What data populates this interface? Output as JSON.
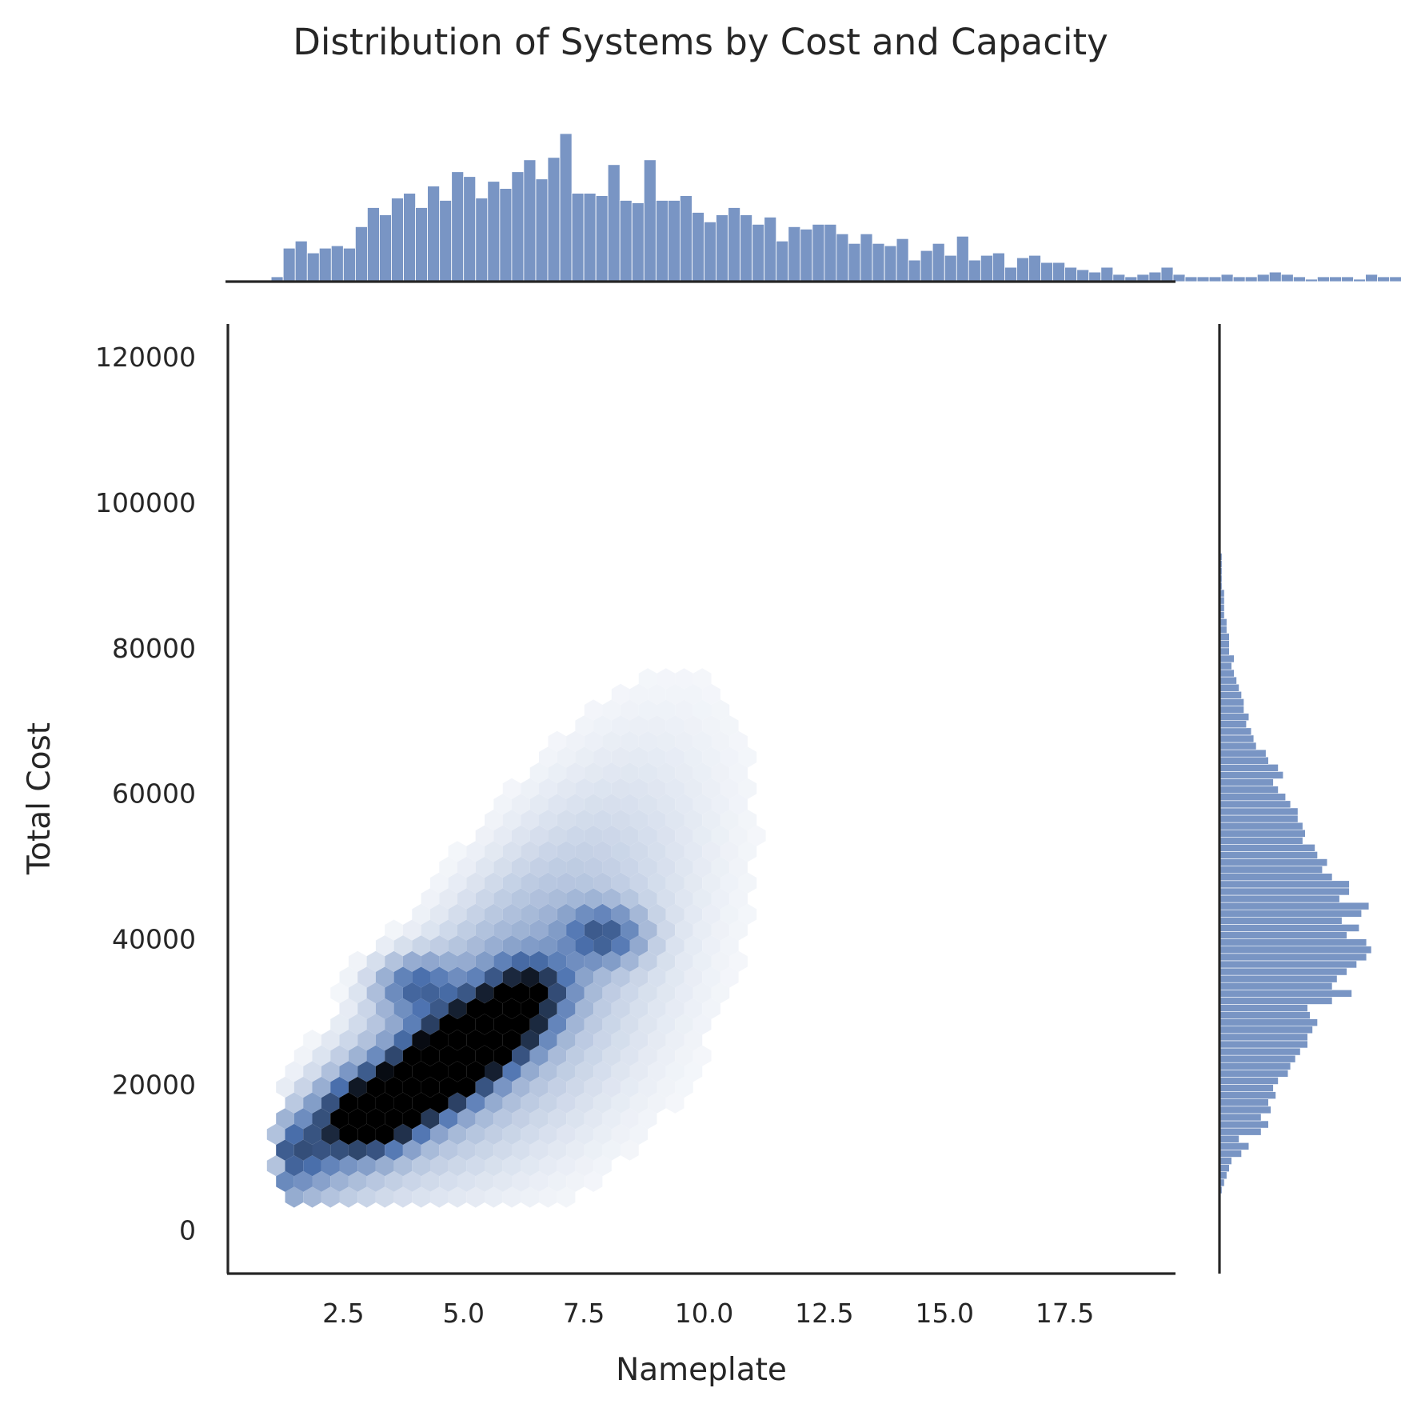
{
  "chart_data": {
    "type": "hexbin",
    "title": "Distribution of Systems by Cost and Capacity",
    "xlabel": "Nameplate",
    "ylabel": "Total Cost",
    "xlim": [
      0.1,
      19.8
    ],
    "ylim": [
      -6000,
      124500
    ],
    "x_ticks": [
      "2.5",
      "5.0",
      "7.5",
      "10.0",
      "12.5",
      "15.0",
      "17.5"
    ],
    "x_tick_values": [
      2.5,
      5.0,
      7.5,
      10.0,
      12.5,
      15.0,
      17.5
    ],
    "y_ticks": [
      "0",
      "20000",
      "40000",
      "60000",
      "80000",
      "100000",
      "120000"
    ],
    "y_tick_values": [
      0,
      20000,
      40000,
      60000,
      80000,
      100000,
      120000
    ],
    "grid": false,
    "colors": {
      "hex_max": "#000000",
      "hex_mid": "#4c72b0",
      "hex_min": "#ffffff",
      "marginal_bar": "#4c72b0"
    },
    "hexbin": {
      "gridsize_x": 48,
      "x_range": [
        1.1,
        19.2
      ],
      "y_range": [
        4500,
        116000
      ],
      "density_model": {
        "description": "approximate count density per hex: cost ≈ 4800·nameplate + 2000 with spread growing with nameplate",
        "slope": 4800,
        "intercept": 2000,
        "spread_base": 3500,
        "spread_per_unit": 1500
      },
      "hotspots": [
        {
          "x": 4.7,
          "y": 23500,
          "intensity": 1.0
        },
        {
          "x": 3.9,
          "y": 19000,
          "intensity": 0.95
        },
        {
          "x": 3.3,
          "y": 17000,
          "intensity": 0.9
        },
        {
          "x": 2.9,
          "y": 14500,
          "intensity": 0.85
        },
        {
          "x": 5.2,
          "y": 25500,
          "intensity": 0.85
        },
        {
          "x": 5.9,
          "y": 29500,
          "intensity": 0.85
        },
        {
          "x": 4.5,
          "y": 21500,
          "intensity": 0.8
        },
        {
          "x": 5.5,
          "y": 27500,
          "intensity": 0.75
        },
        {
          "x": 6.4,
          "y": 33500,
          "intensity": 0.6
        },
        {
          "x": 7.9,
          "y": 40500,
          "intensity": 0.45
        },
        {
          "x": 4.0,
          "y": 33500,
          "intensity": 0.4
        },
        {
          "x": 1.5,
          "y": 11000,
          "intensity": 0.3
        }
      ]
    },
    "marginal_x": {
      "bin_width": 0.25,
      "start": 1.0,
      "counts": [
        2,
        14,
        17,
        12,
        14,
        15,
        14,
        23,
        31,
        28,
        35,
        37,
        31,
        40,
        34,
        46,
        44,
        35,
        42,
        39,
        46,
        51,
        43,
        52,
        62,
        37,
        37,
        36,
        49,
        34,
        33,
        51,
        34,
        34,
        36,
        29,
        25,
        28,
        31,
        28,
        24,
        27,
        17,
        23,
        22,
        24,
        24,
        20,
        16,
        20,
        16,
        15,
        18,
        9,
        13,
        16,
        11,
        19,
        9,
        11,
        12,
        6,
        10,
        11,
        8,
        8,
        6,
        5,
        4,
        6,
        3,
        2,
        3,
        4,
        6,
        3,
        2,
        2,
        2,
        3,
        2,
        2,
        3,
        4,
        3,
        2,
        1,
        2,
        2,
        2,
        1,
        3,
        2,
        2,
        1,
        2,
        2,
        2,
        1,
        1,
        1,
        1,
        1,
        1,
        1,
        0,
        0,
        0,
        0,
        0,
        0,
        0,
        1,
        1,
        0,
        0,
        0,
        0,
        0,
        0,
        0,
        0,
        0,
        1
      ]
    },
    "marginal_y": {
      "bin_width": 1000,
      "start": 5000,
      "counts": [
        1,
        2,
        3,
        4,
        5,
        9,
        12,
        8,
        17,
        20,
        17,
        21,
        20,
        23,
        22,
        24,
        28,
        29,
        31,
        33,
        36,
        36,
        38,
        40,
        37,
        36,
        46,
        54,
        46,
        48,
        52,
        56,
        60,
        62,
        60,
        52,
        57,
        50,
        58,
        61,
        49,
        53,
        53,
        46,
        42,
        44,
        40,
        39,
        34,
        35,
        34,
        32,
        32,
        29,
        27,
        24,
        22,
        26,
        24,
        20,
        19,
        15,
        14,
        13,
        11,
        12,
        10,
        10,
        9,
        8,
        7,
        6,
        5,
        6,
        4,
        4,
        4,
        3,
        3,
        2,
        2,
        2,
        2,
        1,
        1,
        1,
        1,
        1
      ]
    }
  }
}
